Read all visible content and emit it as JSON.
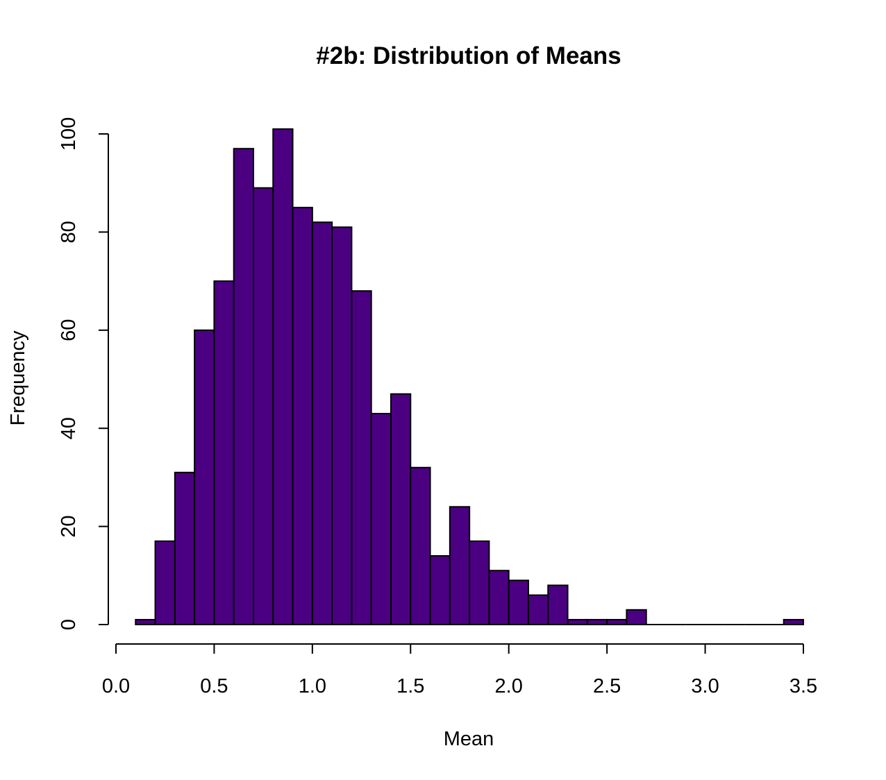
{
  "chart_data": {
    "type": "bar",
    "title": "#2b: Distribution of Means",
    "xlabel": "Mean",
    "ylabel": "Frequency",
    "bar_color": "#4b0082",
    "xlim": [
      0,
      3.5
    ],
    "ylim": [
      0,
      100
    ],
    "x_ticks": [
      "0.0",
      "0.5",
      "1.0",
      "1.5",
      "2.0",
      "2.5",
      "3.0",
      "3.5"
    ],
    "y_ticks": [
      "0",
      "20",
      "40",
      "60",
      "80",
      "100"
    ],
    "bin_width": 0.1,
    "bins": [
      {
        "start": 0.1,
        "end": 0.2,
        "count": 1
      },
      {
        "start": 0.2,
        "end": 0.3,
        "count": 17
      },
      {
        "start": 0.3,
        "end": 0.4,
        "count": 31
      },
      {
        "start": 0.4,
        "end": 0.5,
        "count": 60
      },
      {
        "start": 0.5,
        "end": 0.6,
        "count": 70
      },
      {
        "start": 0.6,
        "end": 0.7,
        "count": 97
      },
      {
        "start": 0.7,
        "end": 0.8,
        "count": 89
      },
      {
        "start": 0.8,
        "end": 0.9,
        "count": 101
      },
      {
        "start": 0.9,
        "end": 1.0,
        "count": 85
      },
      {
        "start": 1.0,
        "end": 1.1,
        "count": 82
      },
      {
        "start": 1.1,
        "end": 1.2,
        "count": 81
      },
      {
        "start": 1.2,
        "end": 1.3,
        "count": 68
      },
      {
        "start": 1.3,
        "end": 1.4,
        "count": 43
      },
      {
        "start": 1.4,
        "end": 1.5,
        "count": 47
      },
      {
        "start": 1.5,
        "end": 1.6,
        "count": 32
      },
      {
        "start": 1.6,
        "end": 1.7,
        "count": 14
      },
      {
        "start": 1.7,
        "end": 1.8,
        "count": 24
      },
      {
        "start": 1.8,
        "end": 1.9,
        "count": 17
      },
      {
        "start": 1.9,
        "end": 2.0,
        "count": 11
      },
      {
        "start": 2.0,
        "end": 2.1,
        "count": 9
      },
      {
        "start": 2.1,
        "end": 2.2,
        "count": 6
      },
      {
        "start": 2.2,
        "end": 2.3,
        "count": 8
      },
      {
        "start": 2.3,
        "end": 2.4,
        "count": 1
      },
      {
        "start": 2.4,
        "end": 2.5,
        "count": 1
      },
      {
        "start": 2.5,
        "end": 2.6,
        "count": 1
      },
      {
        "start": 2.6,
        "end": 2.7,
        "count": 3
      },
      {
        "start": 2.7,
        "end": 2.8,
        "count": 0
      },
      {
        "start": 2.8,
        "end": 2.9,
        "count": 0
      },
      {
        "start": 2.9,
        "end": 3.0,
        "count": 0
      },
      {
        "start": 3.0,
        "end": 3.1,
        "count": 0
      },
      {
        "start": 3.1,
        "end": 3.2,
        "count": 0
      },
      {
        "start": 3.2,
        "end": 3.3,
        "count": 0
      },
      {
        "start": 3.3,
        "end": 3.4,
        "count": 0
      },
      {
        "start": 3.4,
        "end": 3.5,
        "count": 1
      }
    ]
  }
}
